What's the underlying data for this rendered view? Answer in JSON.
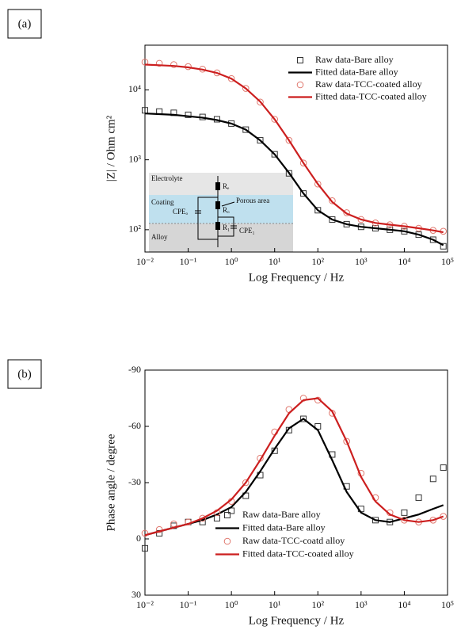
{
  "chart_data": [
    {
      "type": "line",
      "label": "(a)",
      "xlabel": "Log Frequency / Hz",
      "ylabel": "|Z| / Ohm cm²",
      "xscale": "log",
      "yscale": "log",
      "legend": "upper right",
      "xlim": [
        0.01,
        100000
      ],
      "ylim": [
        48,
        43600
      ],
      "xticks": [
        {
          "value": 0.01,
          "label": "10⁻²"
        },
        {
          "value": 0.1,
          "label": "10⁻¹"
        },
        {
          "value": 1,
          "label": "10⁰"
        },
        {
          "value": 10,
          "label": "10¹"
        },
        {
          "value": 100,
          "label": "10²"
        },
        {
          "value": 1000,
          "label": "10³"
        },
        {
          "value": 10000,
          "label": "10⁴"
        },
        {
          "value": 100000,
          "label": "10⁵"
        }
      ],
      "yticks": [
        {
          "value": 100,
          "label": "10²"
        },
        {
          "value": 1000,
          "label": "10³"
        },
        {
          "value": 10000,
          "label": "10⁴"
        }
      ],
      "inset_labels": [
        "Electrolyte",
        "Coating",
        "Alloy",
        "Rₑ",
        "Porous area",
        "Rₒ",
        "CPEₒ",
        "R₁",
        "CPE₁"
      ],
      "x": [
        0.01,
        0.0215,
        0.0464,
        0.1,
        0.215,
        0.464,
        1,
        2.15,
        4.64,
        10,
        21.5,
        46.4,
        100,
        215,
        464,
        1000,
        2150,
        4640,
        10000,
        21500,
        46400,
        80000
      ],
      "series": [
        {
          "name": "Raw data-Bare alloy",
          "color": "#333333",
          "marker": "square",
          "line": false,
          "values": [
            5100,
            4900,
            4700,
            4400,
            4100,
            3800,
            3300,
            2700,
            1900,
            1200,
            640,
            330,
            190,
            140,
            120,
            110,
            105,
            100,
            95,
            85,
            72,
            58
          ]
        },
        {
          "name": "Fitted data-Bare alloy",
          "color": "#000000",
          "marker": "none",
          "line": true,
          "values": [
            4600,
            4500,
            4400,
            4200,
            4000,
            3700,
            3300,
            2700,
            1900,
            1200,
            650,
            330,
            190,
            140,
            120,
            110,
            105,
            100,
            95,
            85,
            72,
            60
          ]
        },
        {
          "name": "Raw data-TCC-coated alloy",
          "color": "#e0786e",
          "marker": "circle",
          "line": false,
          "values": [
            25000,
            24000,
            23000,
            21500,
            19800,
            17500,
            14500,
            10500,
            6700,
            3800,
            1900,
            900,
            450,
            260,
            175,
            140,
            125,
            118,
            112,
            105,
            98,
            95
          ]
        },
        {
          "name": "Fitted data-TCC-coated alloy",
          "color": "#cc1f1f",
          "marker": "none",
          "line": true,
          "values": [
            23000,
            22500,
            22000,
            21000,
            19500,
            17500,
            14500,
            10500,
            6800,
            3800,
            1900,
            900,
            450,
            250,
            170,
            140,
            125,
            118,
            112,
            105,
            98,
            92
          ]
        }
      ]
    },
    {
      "type": "line",
      "label": "(b)",
      "xlabel": "Log Frequency / Hz",
      "ylabel": "Phase angle / degree",
      "xscale": "log",
      "legend": "lower center",
      "xlim": [
        0.01,
        100000
      ],
      "ylim": [
        30,
        -90
      ],
      "xticks": [
        {
          "value": 0.01,
          "label": "10⁻²"
        },
        {
          "value": 0.1,
          "label": "10⁻¹"
        },
        {
          "value": 1,
          "label": "10⁰"
        },
        {
          "value": 10,
          "label": "10¹"
        },
        {
          "value": 100,
          "label": "10²"
        },
        {
          "value": 1000,
          "label": "10³"
        },
        {
          "value": 10000,
          "label": "10⁴"
        },
        {
          "value": 100000,
          "label": "10⁵"
        }
      ],
      "yticks": [
        -90,
        -60,
        -30,
        0,
        30
      ],
      "x": [
        0.01,
        0.0215,
        0.0464,
        0.1,
        0.215,
        0.464,
        1,
        2.15,
        4.64,
        10,
        21.5,
        46.4,
        100,
        215,
        464,
        1000,
        2150,
        4640,
        10000,
        21500,
        46400,
        80000
      ],
      "series": [
        {
          "name": "Raw data-Bare alloy",
          "color": "#333333",
          "marker": "square",
          "line": false,
          "values": [
            5,
            -3,
            -7,
            -9,
            -9,
            -11,
            -15,
            -23,
            -34,
            -47,
            -58,
            -64,
            -60,
            -45,
            -28,
            -16,
            -10,
            -9,
            -14,
            -22,
            -32,
            -38
          ]
        },
        {
          "name": "Fitted data-Bare alloy",
          "color": "#000000",
          "marker": "none",
          "line": true,
          "values": [
            -2,
            -4,
            -6,
            -8,
            -10,
            -13,
            -17,
            -25,
            -36,
            -48,
            -59,
            -64,
            -58,
            -42,
            -25,
            -14,
            -10,
            -9,
            -11,
            -13,
            -16,
            -18
          ]
        },
        {
          "name": "Raw data-TCC-coatd alloy",
          "color": "#e0786e",
          "marker": "circle",
          "line": false,
          "values": [
            -3,
            -5,
            -8,
            -9,
            -11,
            -14,
            -20,
            -30,
            -43,
            -57,
            -69,
            -75,
            -74,
            -67,
            -52,
            -35,
            -22,
            -14,
            -10,
            -9,
            -10,
            -12
          ]
        },
        {
          "name": "Fitted data-TCC-coated alloy",
          "color": "#cc1f1f",
          "marker": "none",
          "line": true,
          "values": [
            -2,
            -4,
            -6,
            -8,
            -11,
            -15,
            -21,
            -30,
            -42,
            -55,
            -67,
            -74,
            -75,
            -68,
            -52,
            -33,
            -20,
            -13,
            -10,
            -9,
            -10,
            -12
          ]
        }
      ]
    }
  ]
}
